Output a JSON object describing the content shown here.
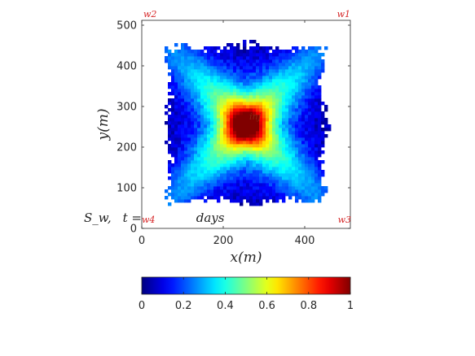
{
  "chart_data": {
    "type": "heatmap",
    "title": "",
    "annotation": {
      "label": "S_w,",
      "time_prefix": "t = ",
      "time_suffix": "days"
    },
    "xlabel": "x(m)",
    "ylabel": "y(m)",
    "xlim": [
      0,
      512
    ],
    "ylim": [
      0,
      512
    ],
    "xticks": [
      0,
      200,
      400
    ],
    "yticks": [
      0,
      100,
      200,
      300,
      400,
      500
    ],
    "colorbar": {
      "range": [
        0,
        1
      ],
      "ticks": [
        "0",
        "0.2",
        "0.4",
        "0.6",
        "0.8",
        "1"
      ],
      "colormap": "jet"
    },
    "wells": [
      {
        "name": "w1",
        "x": 512,
        "y": 512,
        "role": "producer"
      },
      {
        "name": "w2",
        "x": 0,
        "y": 512,
        "role": "producer"
      },
      {
        "name": "w3",
        "x": 512,
        "y": 0,
        "role": "producer"
      },
      {
        "name": "w4",
        "x": 0,
        "y": 0,
        "role": "producer"
      },
      {
        "name": "inj",
        "x": 256,
        "y": 256,
        "role": "injector"
      }
    ],
    "well_color": "#d62728",
    "background": "#ffffff"
  }
}
